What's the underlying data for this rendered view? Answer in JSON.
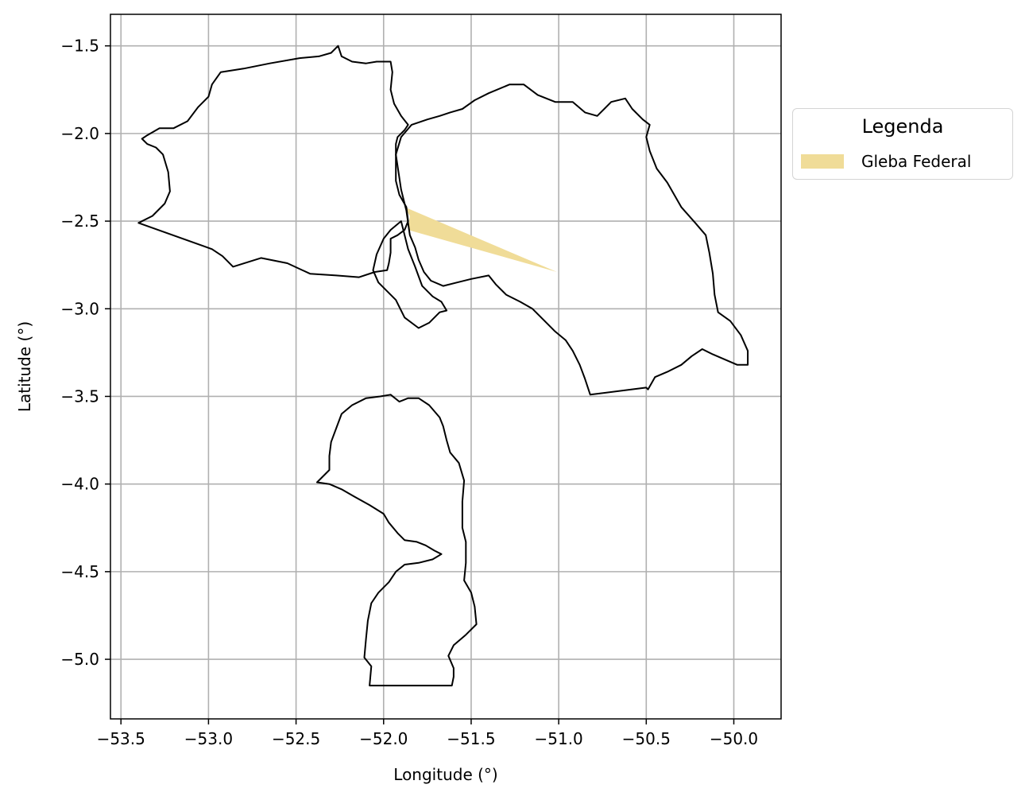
{
  "chart_data": {
    "type": "map",
    "xlabel": "Longitude (°)",
    "ylabel": "Latitude (°)",
    "xlim": [
      -53.56,
      -49.73
    ],
    "ylim": [
      -5.34,
      -1.32
    ],
    "x_ticks": [
      -53.5,
      -53.0,
      -52.5,
      -52.0,
      -51.5,
      -51.0,
      -50.5,
      -50.0
    ],
    "x_tick_labels": [
      "−53.5",
      "−53.0",
      "−52.5",
      "−52.0",
      "−51.5",
      "−51.0",
      "−50.5",
      "−50.0"
    ],
    "y_ticks": [
      -1.5,
      -2.0,
      -2.5,
      -3.0,
      -3.5,
      -4.0,
      -4.5,
      -5.0
    ],
    "y_tick_labels": [
      "−1.5",
      "−2.0",
      "−2.5",
      "−3.0",
      "−3.5",
      "−4.0",
      "−4.5",
      "−5.0"
    ],
    "grid": true,
    "legend": {
      "title": "Legenda",
      "placement": "outside-right",
      "entries": [
        {
          "label": "Gleba Federal",
          "color": "#f0dc98"
        }
      ]
    },
    "boundary_color": "#000000",
    "boundaries": [
      {
        "coords": [
          [
            -53.4,
            -2.51
          ],
          [
            -53.32,
            -2.47
          ],
          [
            -53.25,
            -2.4
          ],
          [
            -53.22,
            -2.33
          ],
          [
            -53.23,
            -2.22
          ],
          [
            -53.26,
            -2.12
          ],
          [
            -53.3,
            -2.08
          ],
          [
            -53.35,
            -2.06
          ],
          [
            -53.38,
            -2.03
          ],
          [
            -53.35,
            -2.01
          ],
          [
            -53.28,
            -1.97
          ],
          [
            -53.2,
            -1.97
          ],
          [
            -53.12,
            -1.93
          ],
          [
            -53.06,
            -1.85
          ],
          [
            -53.0,
            -1.79
          ],
          [
            -52.98,
            -1.72
          ],
          [
            -52.93,
            -1.65
          ],
          [
            -52.8,
            -1.63
          ],
          [
            -52.65,
            -1.6
          ],
          [
            -52.48,
            -1.57
          ],
          [
            -52.37,
            -1.56
          ],
          [
            -52.3,
            -1.54
          ],
          [
            -52.26,
            -1.5
          ],
          [
            -52.24,
            -1.56
          ],
          [
            -52.18,
            -1.59
          ],
          [
            -52.1,
            -1.6
          ],
          [
            -52.04,
            -1.59
          ],
          [
            -52.0,
            -1.59
          ],
          [
            -51.96,
            -1.59
          ],
          [
            -51.95,
            -1.65
          ],
          [
            -51.96,
            -1.75
          ],
          [
            -51.94,
            -1.83
          ],
          [
            -51.9,
            -1.9
          ],
          [
            -51.86,
            -1.95
          ],
          [
            -51.88,
            -1.98
          ],
          [
            -51.92,
            -2.02
          ],
          [
            -51.93,
            -2.06
          ],
          [
            -51.93,
            -2.17
          ],
          [
            -51.93,
            -2.27
          ],
          [
            -51.91,
            -2.35
          ],
          [
            -51.87,
            -2.42
          ],
          [
            -51.86,
            -2.5
          ],
          [
            -51.88,
            -2.55
          ],
          [
            -51.92,
            -2.58
          ],
          [
            -51.96,
            -2.6
          ],
          [
            -51.96,
            -2.68
          ],
          [
            -51.97,
            -2.74
          ],
          [
            -51.98,
            -2.78
          ],
          [
            -52.05,
            -2.79
          ],
          [
            -52.14,
            -2.82
          ],
          [
            -52.27,
            -2.81
          ],
          [
            -52.42,
            -2.8
          ],
          [
            -52.55,
            -2.74
          ],
          [
            -52.7,
            -2.71
          ],
          [
            -52.86,
            -2.76
          ],
          [
            -52.92,
            -2.7
          ],
          [
            -52.98,
            -2.66
          ],
          [
            -53.4,
            -2.51
          ]
        ]
      },
      {
        "coords": [
          [
            -51.87,
            -2.44
          ],
          [
            -51.9,
            -2.32
          ],
          [
            -51.93,
            -2.12
          ],
          [
            -51.9,
            -2.02
          ],
          [
            -51.84,
            -1.95
          ],
          [
            -51.75,
            -1.92
          ],
          [
            -51.68,
            -1.9
          ],
          [
            -51.62,
            -1.88
          ],
          [
            -51.55,
            -1.86
          ],
          [
            -51.48,
            -1.81
          ],
          [
            -51.4,
            -1.77
          ],
          [
            -51.28,
            -1.72
          ],
          [
            -51.2,
            -1.72
          ],
          [
            -51.12,
            -1.78
          ],
          [
            -51.02,
            -1.82
          ],
          [
            -50.92,
            -1.82
          ],
          [
            -50.85,
            -1.88
          ],
          [
            -50.78,
            -1.9
          ],
          [
            -50.7,
            -1.82
          ],
          [
            -50.62,
            -1.8
          ],
          [
            -50.58,
            -1.86
          ],
          [
            -50.52,
            -1.92
          ],
          [
            -50.48,
            -1.95
          ],
          [
            -50.5,
            -2.02
          ],
          [
            -50.48,
            -2.1
          ],
          [
            -50.44,
            -2.2
          ],
          [
            -50.38,
            -2.28
          ],
          [
            -50.3,
            -2.42
          ],
          [
            -50.22,
            -2.51
          ],
          [
            -50.16,
            -2.58
          ],
          [
            -50.14,
            -2.68
          ],
          [
            -50.12,
            -2.8
          ],
          [
            -50.11,
            -2.92
          ],
          [
            -50.09,
            -3.02
          ],
          [
            -50.02,
            -3.07
          ],
          [
            -49.96,
            -3.15
          ],
          [
            -49.92,
            -3.24
          ],
          [
            -49.92,
            -3.32
          ],
          [
            -49.98,
            -3.32
          ],
          [
            -50.05,
            -3.29
          ],
          [
            -50.12,
            -3.26
          ],
          [
            -50.18,
            -3.23
          ],
          [
            -50.24,
            -3.27
          ],
          [
            -50.3,
            -3.32
          ],
          [
            -50.38,
            -3.36
          ],
          [
            -50.45,
            -3.39
          ],
          [
            -50.49,
            -3.46
          ],
          [
            -50.5,
            -3.45
          ],
          [
            -50.82,
            -3.49
          ],
          [
            -50.85,
            -3.4
          ],
          [
            -50.88,
            -3.32
          ],
          [
            -50.92,
            -3.24
          ],
          [
            -50.96,
            -3.18
          ],
          [
            -51.02,
            -3.13
          ],
          [
            -51.08,
            -3.07
          ],
          [
            -51.15,
            -3.0
          ],
          [
            -51.22,
            -2.96
          ],
          [
            -51.3,
            -2.92
          ],
          [
            -51.36,
            -2.86
          ],
          [
            -51.4,
            -2.81
          ],
          [
            -51.5,
            -2.83
          ],
          [
            -51.58,
            -2.85
          ],
          [
            -51.66,
            -2.87
          ],
          [
            -51.73,
            -2.84
          ],
          [
            -51.77,
            -2.79
          ],
          [
            -51.8,
            -2.72
          ],
          [
            -51.82,
            -2.65
          ],
          [
            -51.85,
            -2.58
          ],
          [
            -51.87,
            -2.44
          ]
        ]
      },
      {
        "coords": [
          [
            -51.9,
            -2.5
          ],
          [
            -51.96,
            -2.55
          ],
          [
            -52.0,
            -2.6
          ],
          [
            -52.04,
            -2.69
          ],
          [
            -52.06,
            -2.78
          ],
          [
            -52.03,
            -2.85
          ],
          [
            -51.98,
            -2.9
          ],
          [
            -51.93,
            -2.95
          ],
          [
            -51.88,
            -3.05
          ],
          [
            -51.8,
            -3.11
          ],
          [
            -51.74,
            -3.08
          ],
          [
            -51.68,
            -3.02
          ],
          [
            -51.64,
            -3.01
          ],
          [
            -51.67,
            -2.96
          ],
          [
            -51.72,
            -2.93
          ],
          [
            -51.78,
            -2.87
          ],
          [
            -51.82,
            -2.76
          ],
          [
            -51.86,
            -2.66
          ],
          [
            -51.9,
            -2.5
          ]
        ]
      },
      {
        "coords": [
          [
            -52.38,
            -3.99
          ],
          [
            -52.31,
            -4.0
          ],
          [
            -52.24,
            -4.03
          ],
          [
            -52.17,
            -4.07
          ],
          [
            -52.08,
            -4.12
          ],
          [
            -52.0,
            -4.17
          ],
          [
            -51.97,
            -4.22
          ],
          [
            -51.92,
            -4.28
          ],
          [
            -51.88,
            -4.32
          ],
          [
            -51.81,
            -4.33
          ],
          [
            -51.76,
            -4.35
          ],
          [
            -51.71,
            -4.38
          ],
          [
            -51.67,
            -4.4
          ],
          [
            -51.72,
            -4.43
          ],
          [
            -51.8,
            -4.45
          ],
          [
            -51.88,
            -4.46
          ],
          [
            -51.93,
            -4.5
          ],
          [
            -51.97,
            -4.56
          ],
          [
            -52.03,
            -4.62
          ],
          [
            -52.07,
            -4.68
          ],
          [
            -52.09,
            -4.78
          ],
          [
            -52.1,
            -4.88
          ],
          [
            -52.11,
            -4.99
          ],
          [
            -52.07,
            -5.04
          ],
          [
            -52.08,
            -5.15
          ],
          [
            -51.61,
            -5.15
          ],
          [
            -51.6,
            -5.1
          ],
          [
            -51.6,
            -5.05
          ],
          [
            -51.63,
            -4.98
          ],
          [
            -51.6,
            -4.92
          ],
          [
            -51.53,
            -4.86
          ],
          [
            -51.47,
            -4.8
          ],
          [
            -51.48,
            -4.7
          ],
          [
            -51.5,
            -4.62
          ],
          [
            -51.54,
            -4.55
          ],
          [
            -51.53,
            -4.45
          ],
          [
            -51.53,
            -4.33
          ],
          [
            -51.55,
            -4.25
          ],
          [
            -51.55,
            -4.1
          ],
          [
            -51.54,
            -3.98
          ],
          [
            -51.57,
            -3.88
          ],
          [
            -51.62,
            -3.82
          ],
          [
            -51.64,
            -3.75
          ],
          [
            -51.66,
            -3.67
          ],
          [
            -51.68,
            -3.62
          ],
          [
            -51.74,
            -3.55
          ],
          [
            -51.8,
            -3.51
          ],
          [
            -51.86,
            -3.51
          ],
          [
            -51.91,
            -3.53
          ],
          [
            -51.96,
            -3.49
          ],
          [
            -52.02,
            -3.5
          ],
          [
            -52.1,
            -3.51
          ],
          [
            -52.18,
            -3.55
          ],
          [
            -52.24,
            -3.6
          ],
          [
            -52.27,
            -3.68
          ],
          [
            -52.3,
            -3.76
          ],
          [
            -52.31,
            -3.84
          ],
          [
            -52.31,
            -3.92
          ],
          [
            -52.38,
            -3.99
          ]
        ]
      }
    ],
    "areas": [
      {
        "name": "Gleba Federal",
        "color": "#f0dc98",
        "coords": [
          [
            -51.88,
            -2.42
          ],
          [
            -51.01,
            -2.79
          ],
          [
            -51.86,
            -2.55
          ],
          [
            -51.85,
            -2.47
          ]
        ]
      }
    ]
  }
}
